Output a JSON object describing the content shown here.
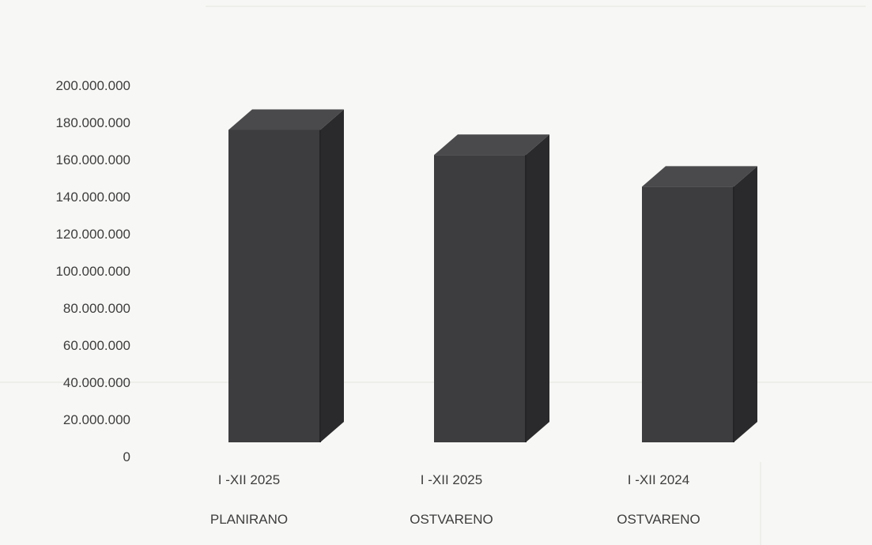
{
  "chart_data": {
    "type": "bar",
    "style": "3d-column",
    "title": "",
    "xlabel": "",
    "ylabel": "",
    "categories": [
      [
        "I -XII 2025",
        "PLANIRANO"
      ],
      [
        "I -XII 2025",
        "OSTVARENO"
      ],
      [
        "I -XII 2024",
        "OSTVARENO"
      ]
    ],
    "values": [
      187000000,
      172000000,
      153000000
    ],
    "ylim": [
      0,
      200000000
    ],
    "yticks": [
      0,
      20000000,
      40000000,
      60000000,
      80000000,
      100000000,
      120000000,
      140000000,
      160000000,
      180000000,
      200000000
    ],
    "ytick_labels": [
      "0",
      "20.000.000",
      "40.000.000",
      "60.000.000",
      "80.000.000",
      "100.000.000",
      "120.000.000",
      "140.000.000",
      "160.000.000",
      "180.000.000",
      "200.000.000"
    ],
    "grid": false,
    "legend": "none",
    "colors": {
      "bar_front": "#3d3d3f",
      "bar_side": "#2a2a2c",
      "bar_top": "#4a4a4c",
      "floor": "#8a8a8a",
      "background": "#f7f7f5",
      "text": "#3d3d3d"
    }
  }
}
